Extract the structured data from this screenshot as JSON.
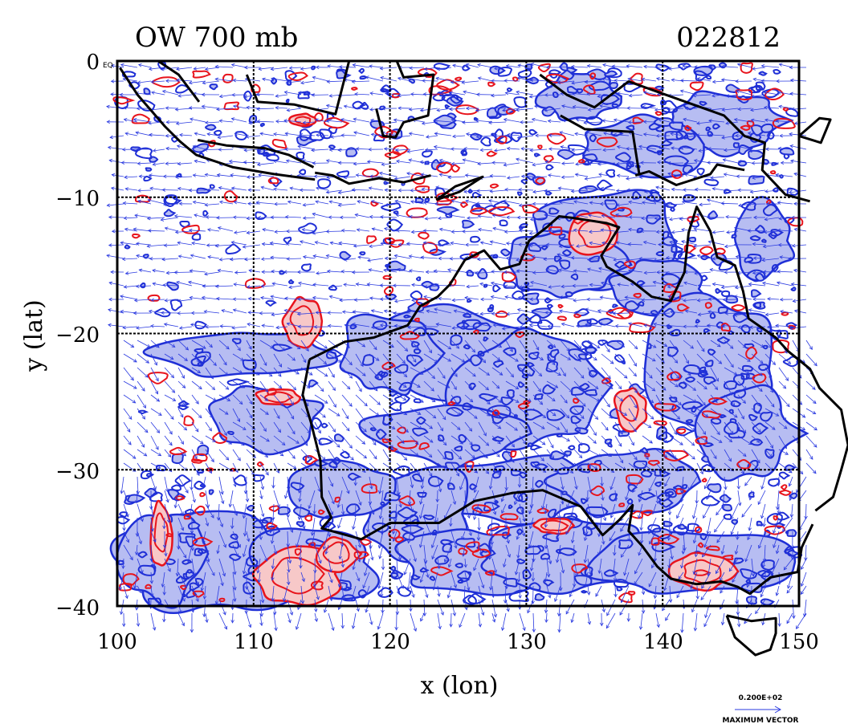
{
  "title_left": "OW 700 mb",
  "title_right": "022812",
  "x_axis_label": "x (lon)",
  "y_axis_label": "y (lat)",
  "x_ticks": [
    "100",
    "110",
    "120",
    "130",
    "140",
    "150"
  ],
  "y_ticks": [
    "0",
    "−10",
    "−20",
    "−30",
    "−40"
  ],
  "corner_label": "EQ",
  "vector_scale_value": "0.200E+02",
  "vector_scale_label": "MAXIMUM VECTOR",
  "map": {
    "x_range": [
      100,
      150
    ],
    "y_range": [
      -40,
      0
    ],
    "grid_x": [
      110,
      120,
      130,
      140
    ],
    "grid_y": [
      -10,
      -20,
      -30
    ],
    "colors": {
      "positive_contour": "#e8141c",
      "positive_fill": "#f7c8c8",
      "negative_contour": "#1f2fd6",
      "negative_fill": "#b7bdf2",
      "vector": "#2a3ae0",
      "coast": "#000000"
    }
  }
}
